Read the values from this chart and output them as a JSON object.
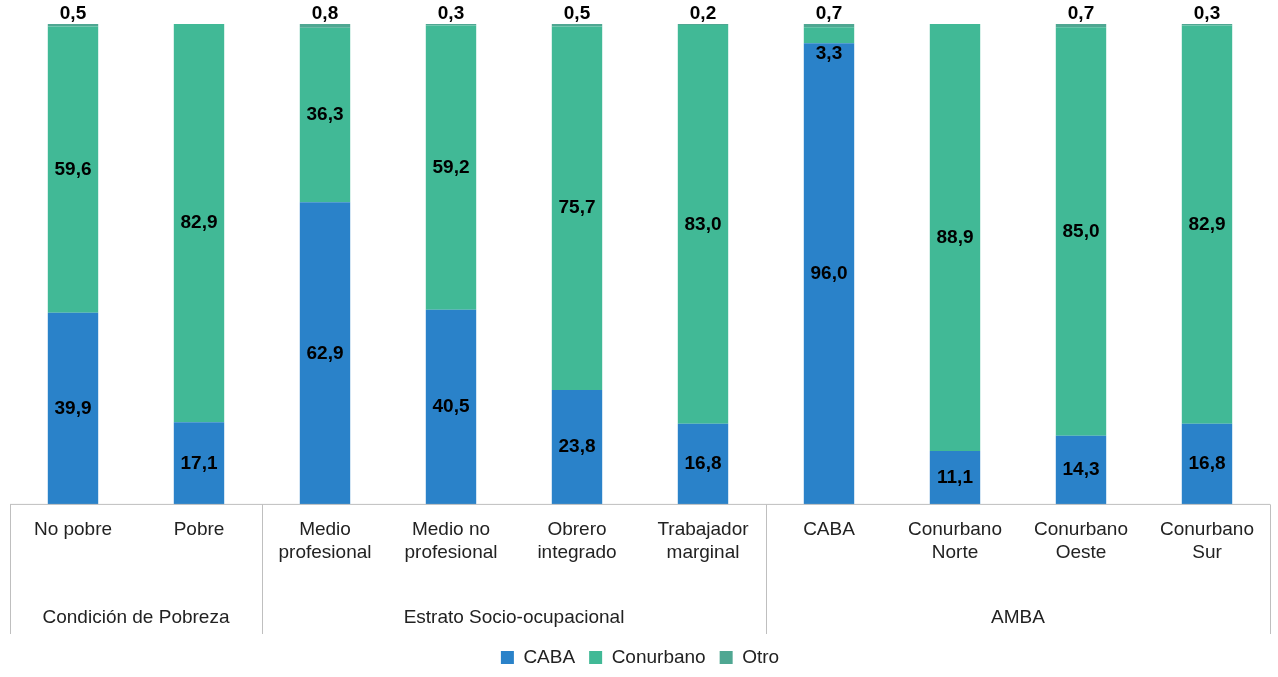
{
  "chart_data": {
    "type": "bar",
    "stacked": true,
    "legend": "bottom",
    "categories": [
      "No pobre",
      "Pobre",
      "Medio profesional",
      "Medio no profesional",
      "Obrero integrado",
      "Trabajador marginal",
      "CABA",
      "Conurbano Norte",
      "Conurbano Oeste",
      "Conurbano Sur"
    ],
    "series": [
      {
        "name": "CABA",
        "color": "#2a82c9",
        "values": [
          39.9,
          17.1,
          62.9,
          40.5,
          23.8,
          16.8,
          96.0,
          11.1,
          14.3,
          16.8
        ],
        "value_labels": [
          "39,9",
          "17,1",
          "62,9",
          "40,5",
          "23,8",
          "16,8",
          "96,0",
          "11,1",
          "14,3",
          "16,8"
        ]
      },
      {
        "name": "Conurbano",
        "color": "#41b996",
        "values": [
          59.6,
          82.9,
          36.3,
          59.2,
          75.7,
          83.0,
          3.3,
          88.9,
          85.0,
          82.9
        ],
        "value_labels": [
          "59,6",
          "82,9",
          "36,3",
          "59,2",
          "75,7",
          "83,0",
          "3,3",
          "88,9",
          "85,0",
          "82,9"
        ]
      },
      {
        "name": "Otro",
        "color": "#4fa792",
        "values": [
          0.5,
          null,
          0.8,
          0.3,
          0.5,
          0.2,
          0.7,
          null,
          0.7,
          0.3
        ],
        "value_labels": [
          "0,5",
          null,
          "0,8",
          "0,3",
          "0,5",
          "0,2",
          "0,7",
          null,
          "0,7",
          "0,3"
        ]
      }
    ],
    "annotations": [
      "Condición de Pobreza",
      "Estrato Socio-ocupacional",
      "AMBA"
    ]
  }
}
